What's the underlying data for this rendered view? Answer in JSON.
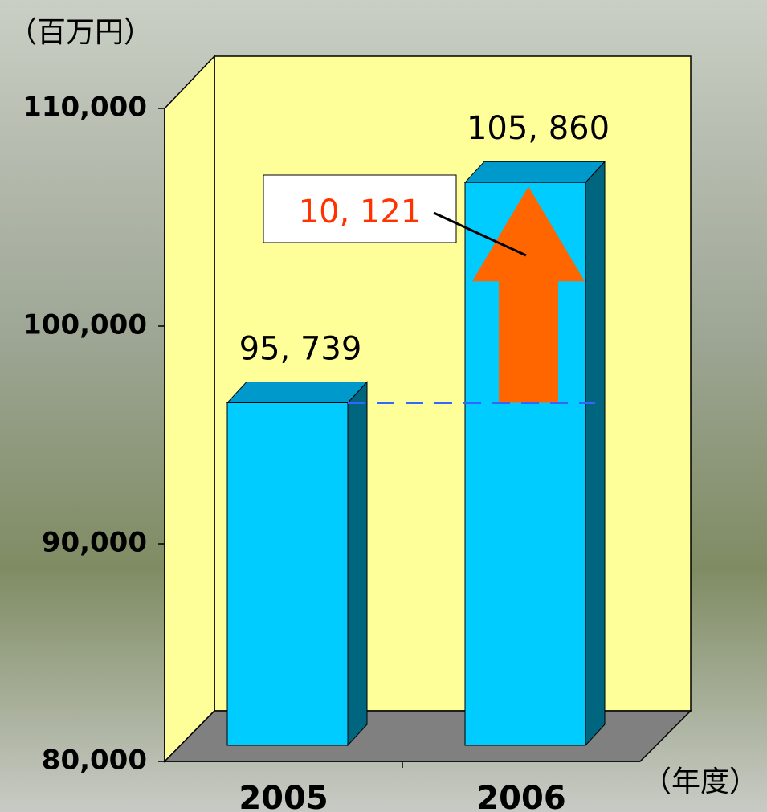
{
  "chart_data": {
    "type": "bar3d",
    "y_axis_label": "（百万円）",
    "x_axis_label": "（年度）",
    "categories": [
      "2005",
      "2006"
    ],
    "values": [
      95739,
      105860
    ],
    "value_labels": [
      "95, 739",
      "105, 860"
    ],
    "annotation": "10, 121",
    "color": "#00ccff",
    "ylim": [
      80000,
      110000
    ],
    "yticks": [
      {
        "value": 80000,
        "label": "80,000"
      },
      {
        "value": 90000,
        "label": "90,000"
      },
      {
        "value": 100000,
        "label": "100,000"
      },
      {
        "value": 110000,
        "label": "110,000"
      }
    ]
  }
}
